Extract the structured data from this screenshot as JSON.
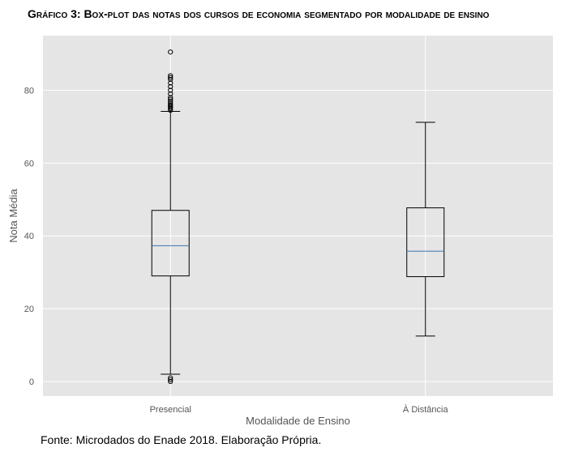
{
  "figure": {
    "title": "Gráfico 3: Box-plot das notas dos cursos de economia segmentado por modalidade de ensino",
    "source": "Fonte: Microdados do Enade 2018. Elaboração Própria."
  },
  "colors": {
    "plot_background": "#e5e5e5",
    "grid": "#ffffff",
    "median": "#3b75af",
    "box": "#000000",
    "axis_text": "#555555"
  },
  "chart_data": {
    "type": "box",
    "xlabel": "Modalidade de Ensino",
    "ylabel": "Nota Média",
    "ylim": [
      -4,
      95
    ],
    "yticks": [
      0,
      20,
      40,
      60,
      80
    ],
    "grid": true,
    "categories": [
      "Presencial",
      "À Distância"
    ],
    "boxes": [
      {
        "category": "Presencial",
        "whisker_low": 2,
        "q1": 29,
        "median": 37.3,
        "q3": 47,
        "whisker_high": 74.2,
        "outliers_high": [
          74.5,
          75,
          75.3,
          75.7,
          76,
          76.5,
          77,
          77.5,
          78,
          79,
          80,
          81,
          82,
          83,
          83.5,
          84,
          90.5
        ],
        "outliers_low": [
          0,
          0.5,
          1
        ]
      },
      {
        "category": "À Distância",
        "whisker_low": 12.5,
        "q1": 28.8,
        "median": 35.8,
        "q3": 47.7,
        "whisker_high": 71.2,
        "outliers_high": [],
        "outliers_low": []
      }
    ]
  }
}
